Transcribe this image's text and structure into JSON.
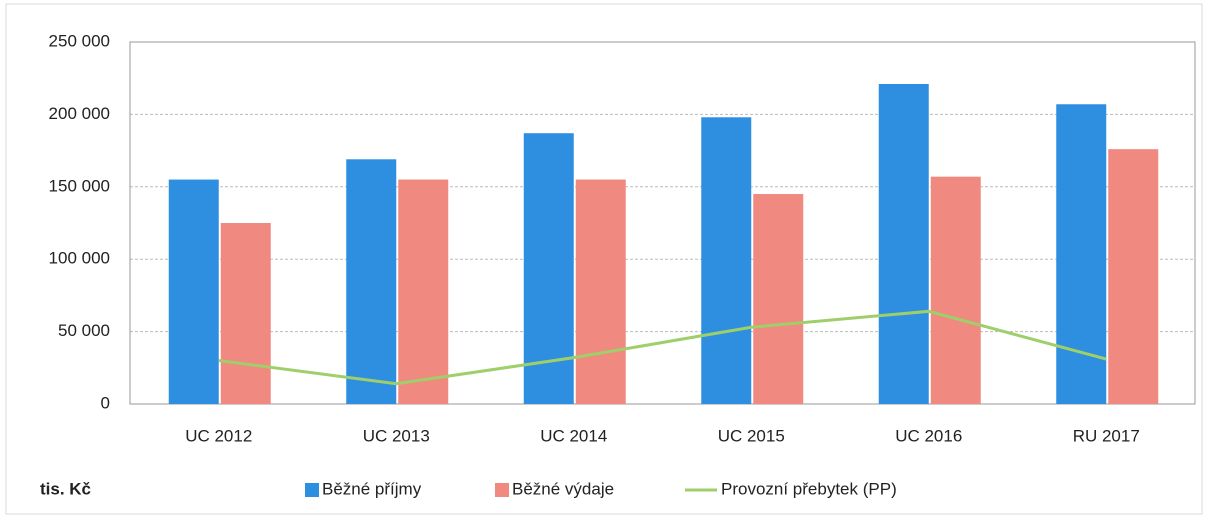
{
  "chart_data": {
    "type": "bar",
    "unit_label": "tis. Kč",
    "categories": [
      "UC 2012",
      "UC 2013",
      "UC 2014",
      "UC 2015",
      "UC 2016",
      "RU 2017"
    ],
    "series": [
      {
        "name": "Běžné příjmy",
        "color": "#2e8fe0",
        "values": [
          155000,
          169000,
          187000,
          198000,
          221000,
          207000
        ]
      },
      {
        "name": "Běžné výdaje",
        "color": "#f08a80",
        "values": [
          125000,
          155000,
          155000,
          145000,
          157000,
          176000
        ]
      },
      {
        "name": "Provozní přebytek (PP)",
        "color": "#9fcf6a",
        "type": "line",
        "values": [
          30000,
          14000,
          32000,
          53000,
          64000,
          31000
        ]
      }
    ],
    "ylim": [
      0,
      250000
    ],
    "yticks": [
      0,
      {
        "value": 50000,
        "label": "50 000"
      },
      {
        "value": 100000,
        "label": "100 000"
      },
      {
        "value": 150000,
        "label": "150 000"
      },
      {
        "value": 200000,
        "label": "200 000"
      },
      {
        "value": 250000,
        "label": "250 000"
      }
    ],
    "grid": true
  }
}
